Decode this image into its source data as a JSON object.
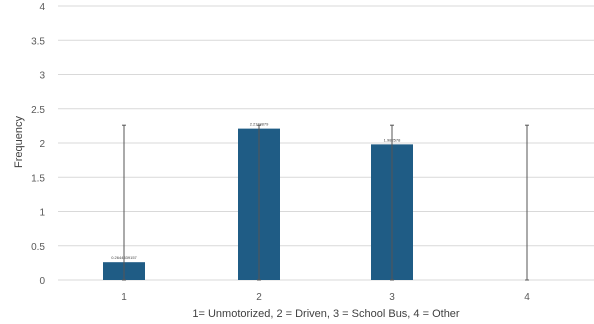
{
  "chart_data": {
    "type": "bar",
    "categories": [
      "1",
      "2",
      "3",
      "4"
    ],
    "values": [
      0.26,
      2.21,
      1.98,
      0
    ],
    "error_bars": [
      {
        "low": 0,
        "high": 2.26
      },
      {
        "low": 0,
        "high": 2.26
      },
      {
        "low": 0,
        "high": 2.26
      },
      {
        "low": 0,
        "high": 2.26
      }
    ],
    "data_labels": [
      "0.2644539157",
      "2.2118879",
      "1.982578",
      ""
    ],
    "xlabel": "1= Unmotorized, 2 = Driven, 3 =  School Bus, 4 = Other",
    "ylabel": "Frequency",
    "ylim": [
      0,
      4
    ],
    "yticks": [
      "0",
      "0.5",
      "1",
      "1.5",
      "2",
      "2.5",
      "3",
      "3.5",
      "4"
    ],
    "grid": true,
    "colors": {
      "bar": "#1f5c85",
      "grid": "#d9d9d9",
      "error": "#555555"
    }
  }
}
